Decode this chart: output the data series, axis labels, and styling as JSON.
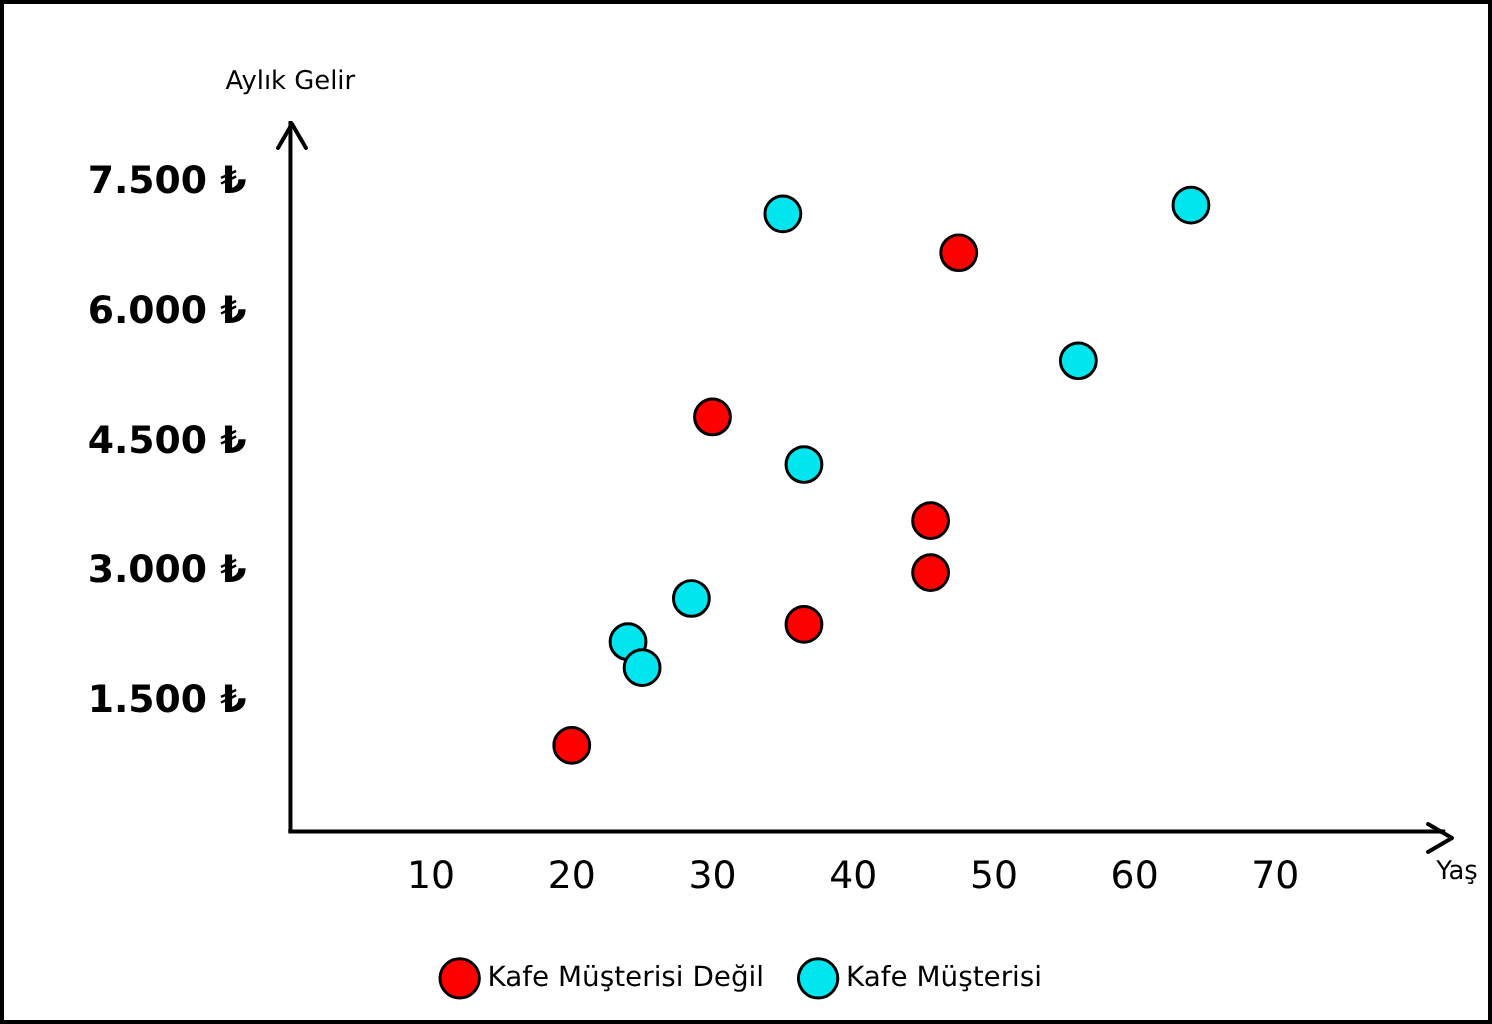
{
  "chart_data": {
    "type": "scatter",
    "xlabel": "Yaş",
    "ylabel": "Aylık Gelir",
    "xlim": [
      0,
      82
    ],
    "ylim": [
      0,
      8200
    ],
    "xticks": [
      10,
      20,
      30,
      40,
      50,
      60,
      70
    ],
    "yticks": [
      {
        "value": 1500,
        "label": "1.500 ₺"
      },
      {
        "value": 3000,
        "label": "3.000 ₺"
      },
      {
        "value": 4500,
        "label": "4.500 ₺"
      },
      {
        "value": 6000,
        "label": "6.000 ₺"
      },
      {
        "value": 7500,
        "label": "7.500 ₺"
      }
    ],
    "grid": false,
    "legend": "bottom",
    "marker": "circle",
    "series": [
      {
        "name": "Kafe Müşterisi Değil",
        "color": "#ff0000",
        "x": [
          20,
          30,
          36.5,
          45.5,
          45.5,
          47.5
        ],
        "values": [
          1000,
          4800,
          2400,
          3600,
          3000,
          6700
        ]
      },
      {
        "name": "Kafe Müşterisi",
        "color": "#00e5ee",
        "x": [
          24,
          25,
          28.5,
          35,
          36.5,
          56,
          64
        ],
        "values": [
          2200,
          1900,
          2700,
          7150,
          4250,
          5450,
          7250
        ]
      }
    ]
  }
}
